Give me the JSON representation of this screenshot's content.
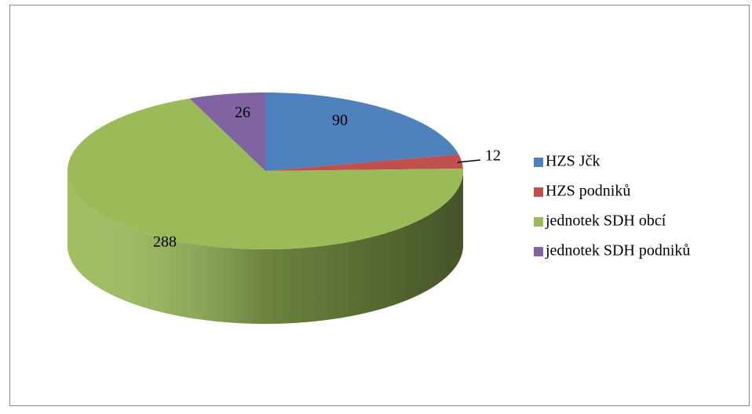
{
  "chart_data": {
    "type": "pie",
    "categories": [
      "HZS Jčk",
      "HZS podniků",
      "jednotek SDH obcí",
      "jednotek SDH podniků"
    ],
    "values": [
      90,
      12,
      288,
      26
    ],
    "colors": [
      "#4f81bd",
      "#c0504d",
      "#9bbb59",
      "#8064a2"
    ],
    "legend": "right"
  }
}
